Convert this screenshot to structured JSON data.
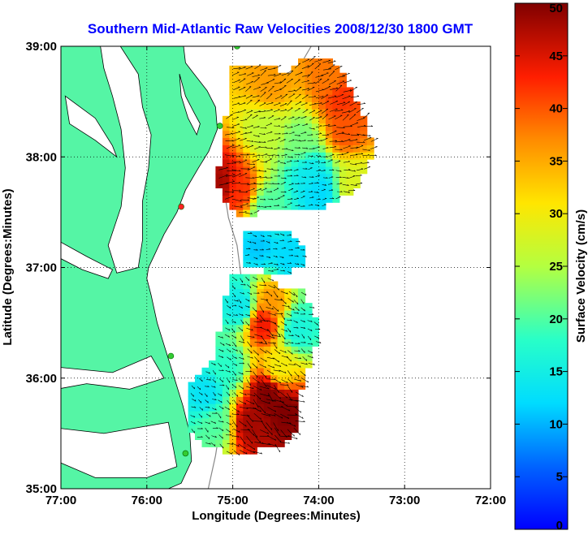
{
  "chart_data": {
    "type": "heatmap",
    "title": "Southern Mid-Atlantic Raw Velocities 2008/12/30 1800 GMT",
    "xlabel": "Longitude (Degrees:Minutes)",
    "ylabel": "Latitude (Degrees:Minutes)",
    "colorbar_label": "Surface Velocity (cm/s)",
    "x_ticks": [
      {
        "value": -77,
        "label": "77:00"
      },
      {
        "value": -76,
        "label": "76:00"
      },
      {
        "value": -75,
        "label": "75:00"
      },
      {
        "value": -74,
        "label": "74:00"
      },
      {
        "value": -73,
        "label": "73:00"
      },
      {
        "value": -72,
        "label": "72:00"
      }
    ],
    "y_ticks": [
      {
        "value": 35,
        "label": "35:00"
      },
      {
        "value": 36,
        "label": "36:00"
      },
      {
        "value": 37,
        "label": "37:00"
      },
      {
        "value": 38,
        "label": "38:00"
      },
      {
        "value": 39,
        "label": "39:00"
      }
    ],
    "xlim": [
      -77,
      -72
    ],
    "ylim": [
      35,
      39
    ],
    "colorbar_range": [
      0,
      50
    ],
    "colorbar_ticks": [
      0,
      5,
      10,
      15,
      20,
      25,
      30,
      35,
      40,
      45,
      50
    ],
    "colormap": "jet",
    "grid": "dotted",
    "land_color": "#55f5a5",
    "regions": [
      {
        "name": "north",
        "points": [
          [
            -75.03,
            38.8
          ],
          [
            -74.58,
            38.82
          ],
          [
            -74.4,
            38.75
          ],
          [
            -74.2,
            38.9
          ],
          [
            -73.9,
            38.88
          ],
          [
            -73.7,
            38.72
          ],
          [
            -73.52,
            38.45
          ],
          [
            -73.4,
            38.2
          ],
          [
            -73.4,
            37.95
          ],
          [
            -73.6,
            37.7
          ],
          [
            -73.95,
            37.55
          ],
          [
            -74.4,
            37.55
          ],
          [
            -74.7,
            37.5
          ],
          [
            -74.9,
            37.45
          ],
          [
            -75.05,
            37.55
          ],
          [
            -75.2,
            37.75
          ],
          [
            -75.15,
            37.95
          ],
          [
            -75.1,
            38.25
          ],
          [
            -75.05,
            38.55
          ]
        ]
      },
      {
        "name": "middle",
        "points": [
          [
            -74.9,
            37.35
          ],
          [
            -74.35,
            37.35
          ],
          [
            -74.2,
            37.2
          ],
          [
            -74.2,
            37.0
          ],
          [
            -74.45,
            36.95
          ],
          [
            -74.9,
            37.0
          ]
        ]
      },
      {
        "name": "south",
        "points": [
          [
            -75.0,
            36.95
          ],
          [
            -74.65,
            36.95
          ],
          [
            -74.4,
            36.78
          ],
          [
            -74.2,
            36.8
          ],
          [
            -74.05,
            36.6
          ],
          [
            -74.0,
            36.35
          ],
          [
            -74.1,
            36.15
          ],
          [
            -74.2,
            35.9
          ],
          [
            -74.25,
            35.55
          ],
          [
            -74.45,
            35.4
          ],
          [
            -74.7,
            35.35
          ],
          [
            -75.0,
            35.32
          ],
          [
            -75.35,
            35.4
          ],
          [
            -75.55,
            35.55
          ],
          [
            -75.55,
            35.85
          ],
          [
            -75.45,
            36.0
          ],
          [
            -75.2,
            36.2
          ],
          [
            -75.15,
            36.45
          ],
          [
            -75.1,
            36.7
          ]
        ]
      }
    ],
    "speed_sources": [
      {
        "lon": -75.15,
        "lat": 37.75,
        "speed": 48
      },
      {
        "lon": -74.92,
        "lat": 37.7,
        "speed": 42
      },
      {
        "lon": -74.55,
        "lat": 38.65,
        "speed": 36
      },
      {
        "lon": -73.75,
        "lat": 38.55,
        "speed": 42
      },
      {
        "lon": -73.7,
        "lat": 38.25,
        "speed": 40
      },
      {
        "lon": -73.85,
        "lat": 38.7,
        "speed": 38
      },
      {
        "lon": -74.2,
        "lat": 38.15,
        "speed": 22
      },
      {
        "lon": -74.6,
        "lat": 38.25,
        "speed": 26
      },
      {
        "lon": -73.6,
        "lat": 37.75,
        "speed": 28
      },
      {
        "lon": -74.0,
        "lat": 37.7,
        "speed": 12
      },
      {
        "lon": -74.1,
        "lat": 37.85,
        "speed": 14
      },
      {
        "lon": -74.6,
        "lat": 37.55,
        "speed": 20
      },
      {
        "lon": -74.7,
        "lat": 37.2,
        "speed": 11
      },
      {
        "lon": -74.35,
        "lat": 37.1,
        "speed": 12
      },
      {
        "lon": -74.9,
        "lat": 36.65,
        "speed": 14
      },
      {
        "lon": -74.55,
        "lat": 36.7,
        "speed": 36
      },
      {
        "lon": -74.65,
        "lat": 36.5,
        "speed": 44
      },
      {
        "lon": -74.25,
        "lat": 36.45,
        "speed": 16
      },
      {
        "lon": -74.45,
        "lat": 36.1,
        "speed": 30
      },
      {
        "lon": -74.6,
        "lat": 35.85,
        "speed": 50
      },
      {
        "lon": -74.4,
        "lat": 35.7,
        "speed": 50
      },
      {
        "lon": -74.8,
        "lat": 35.6,
        "speed": 48
      },
      {
        "lon": -75.2,
        "lat": 35.6,
        "speed": 20
      },
      {
        "lon": -75.3,
        "lat": 35.85,
        "speed": 13
      },
      {
        "lon": -75.05,
        "lat": 36.1,
        "speed": 18
      }
    ],
    "sites": [
      {
        "lon": -74.95,
        "lat": 39.0
      },
      {
        "lon": -75.15,
        "lat": 38.28
      },
      {
        "lon": -75.6,
        "lat": 37.55
      },
      {
        "lon": -75.72,
        "lat": 36.2
      },
      {
        "lon": -75.55,
        "lat": 35.32
      }
    ],
    "site_colors": [
      "#33cc33",
      "#33cc33",
      "#ff2222",
      "#33cc33",
      "#33cc33"
    ]
  }
}
